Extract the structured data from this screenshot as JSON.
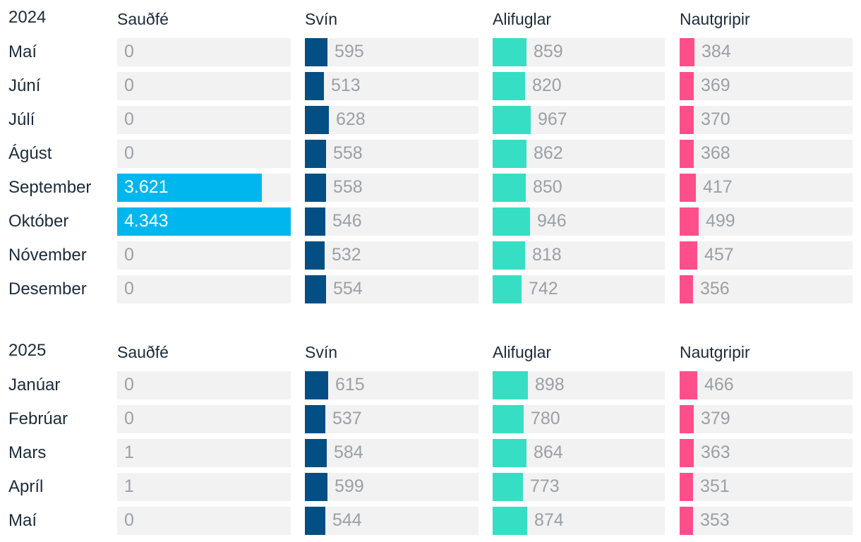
{
  "chart_data": [
    {
      "type": "bar",
      "title": "2024",
      "categories": [
        "Maí",
        "Júní",
        "Júlí",
        "Ágúst",
        "September",
        "Október",
        "Nóvember",
        "Desember"
      ],
      "series": [
        {
          "name": "Sauðfé",
          "color": "#00b6ee",
          "values": [
            0,
            0,
            0,
            0,
            3621,
            4343,
            0,
            0
          ],
          "labels": [
            "0",
            "0",
            "0",
            "0",
            "3.621",
            "4.343",
            "0",
            "0"
          ]
        },
        {
          "name": "Svín",
          "color": "#034f84",
          "values": [
            595,
            513,
            628,
            558,
            558,
            546,
            532,
            554
          ],
          "labels": [
            "595",
            "513",
            "628",
            "558",
            "558",
            "546",
            "532",
            "554"
          ]
        },
        {
          "name": "Alifuglar",
          "color": "#36dfc3",
          "values": [
            859,
            820,
            967,
            862,
            850,
            946,
            818,
            742
          ],
          "labels": [
            "859",
            "820",
            "967",
            "862",
            "850",
            "946",
            "818",
            "742"
          ]
        },
        {
          "name": "Nautgripir",
          "color": "#ff4f8a",
          "values": [
            384,
            369,
            370,
            368,
            417,
            499,
            457,
            356
          ],
          "labels": [
            "384",
            "369",
            "370",
            "368",
            "417",
            "499",
            "457",
            "356"
          ]
        }
      ]
    },
    {
      "type": "bar",
      "title": "2025",
      "categories": [
        "Janúar",
        "Febrúar",
        "Mars",
        "Apríl",
        "Maí"
      ],
      "series": [
        {
          "name": "Sauðfé",
          "color": "#00b6ee",
          "values": [
            0,
            0,
            1,
            1,
            0
          ],
          "labels": [
            "0",
            "0",
            "1",
            "1",
            "0"
          ]
        },
        {
          "name": "Svín",
          "color": "#034f84",
          "values": [
            615,
            537,
            584,
            599,
            544
          ],
          "labels": [
            "615",
            "537",
            "584",
            "599",
            "544"
          ]
        },
        {
          "name": "Alifuglar",
          "color": "#36dfc3",
          "values": [
            898,
            780,
            864,
            773,
            874
          ],
          "labels": [
            "898",
            "780",
            "864",
            "773",
            "874"
          ]
        },
        {
          "name": "Nautgripir",
          "color": "#ff4f8a",
          "values": [
            466,
            379,
            363,
            351,
            353
          ],
          "labels": [
            "466",
            "379",
            "363",
            "351",
            "353"
          ]
        }
      ]
    }
  ]
}
